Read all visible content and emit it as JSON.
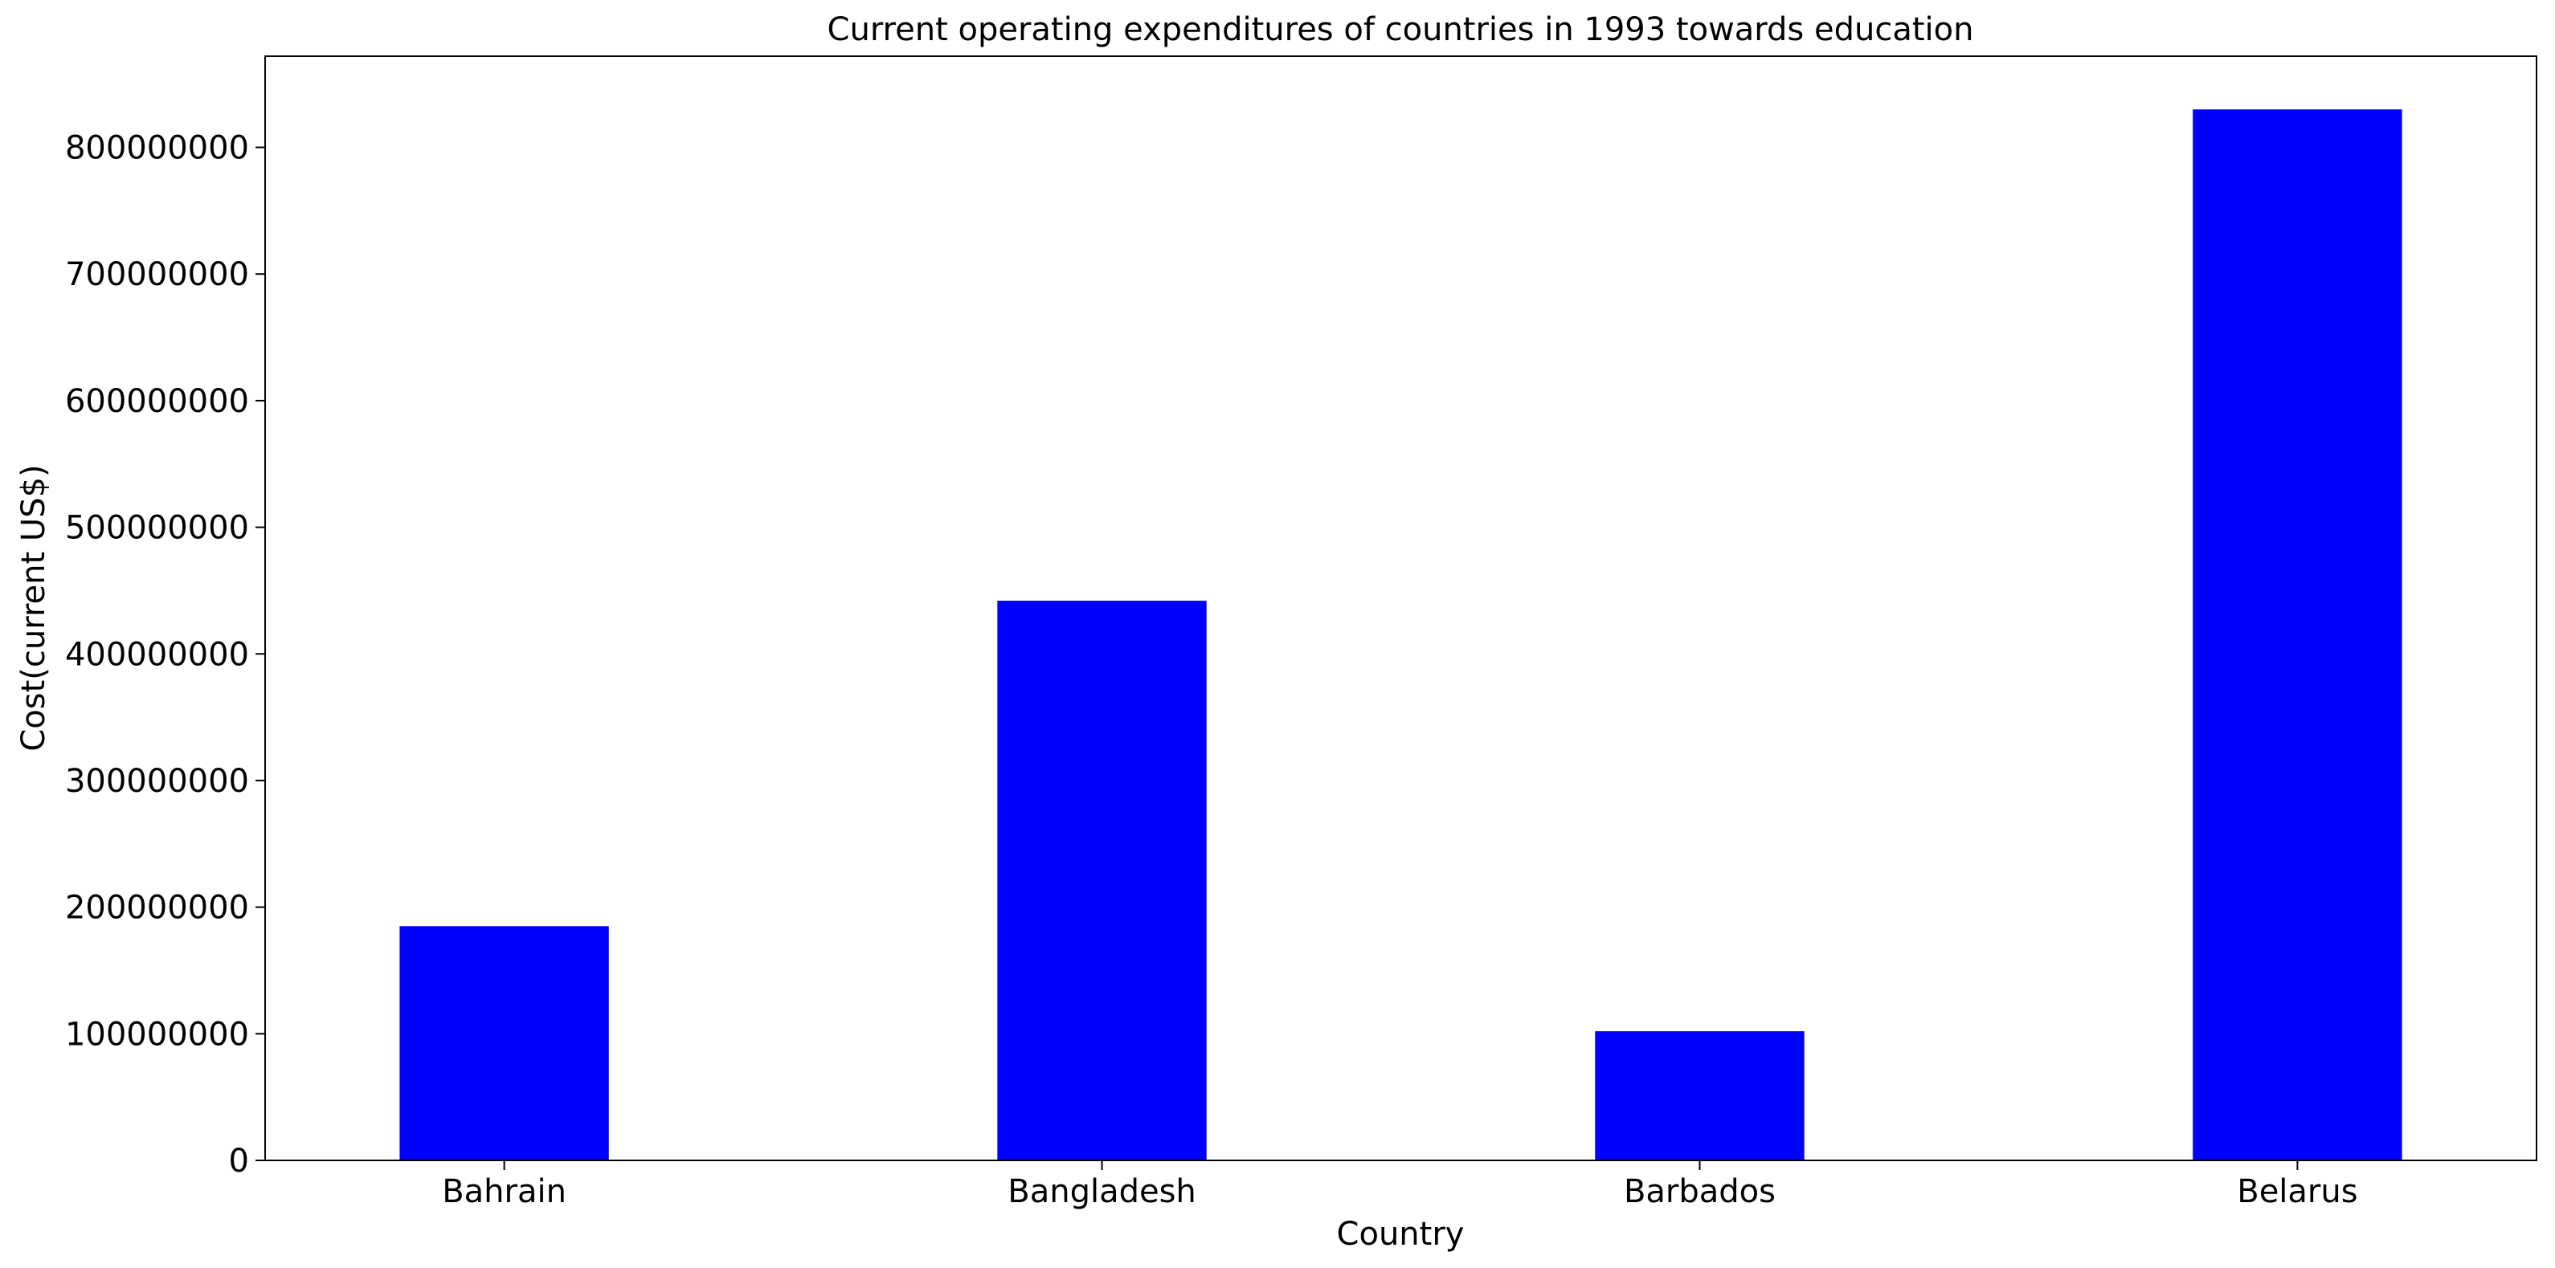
{
  "chart_data": {
    "type": "bar",
    "title": "Current operating expenditures of countries in 1993 towards education",
    "xlabel": "Country",
    "ylabel": "Cost(current US$)",
    "categories": [
      "Bahrain",
      "Bangladesh",
      "Barbados",
      "Belarus"
    ],
    "values": [
      185000000,
      442000000,
      102000000,
      830000000
    ],
    "ylim": [
      0,
      872000000
    ],
    "yticks": [
      0,
      100000000,
      200000000,
      300000000,
      400000000,
      500000000,
      600000000,
      700000000,
      800000000
    ],
    "ytick_labels": [
      "0",
      "100000000",
      "200000000",
      "300000000",
      "400000000",
      "500000000",
      "600000000",
      "700000000",
      "800000000"
    ],
    "bar_color": "#0000ff",
    "grid": false,
    "legend": "none"
  }
}
